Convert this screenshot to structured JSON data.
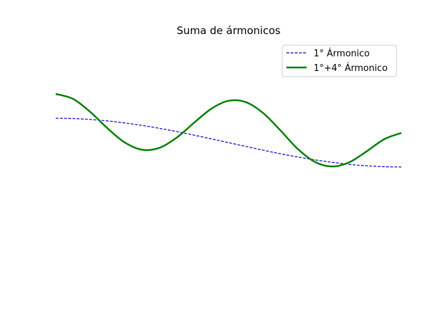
{
  "chart_data": {
    "type": "line",
    "title": "Suma de ármonicos",
    "xlabel": "",
    "ylabel": "",
    "xlim": [
      0,
      1
    ],
    "ylim": [
      -1.3,
      1.3
    ],
    "axes_visible": false,
    "grid": false,
    "legend_position": "top-right",
    "series": [
      {
        "name": "1° Ármonico",
        "color": "#0000cc",
        "style": "dashed",
        "x": [
          0,
          0.05,
          0.1,
          0.15,
          0.2,
          0.25,
          0.3,
          0.35,
          0.4,
          0.45,
          0.5,
          0.55,
          0.6,
          0.65,
          0.7,
          0.75,
          0.8,
          0.85,
          0.9,
          0.95,
          1.0
        ],
        "values": [
          0.5,
          0.497,
          0.488,
          0.473,
          0.452,
          0.427,
          0.397,
          0.364,
          0.327,
          0.289,
          0.25,
          0.211,
          0.173,
          0.136,
          0.103,
          0.073,
          0.048,
          0.027,
          0.012,
          0.003,
          0.0
        ]
      },
      {
        "name": "1°+4° Ármonico",
        "color": "#008000",
        "style": "solid",
        "x": [
          0,
          0.05,
          0.1,
          0.15,
          0.2,
          0.25,
          0.3,
          0.35,
          0.4,
          0.45,
          0.5,
          0.55,
          0.6,
          0.65,
          0.7,
          0.75,
          0.8,
          0.85,
          0.9,
          0.95,
          1.0
        ],
        "values": [
          0.75,
          0.699,
          0.565,
          0.396,
          0.251,
          0.177,
          0.197,
          0.302,
          0.454,
          0.598,
          0.68,
          0.666,
          0.554,
          0.376,
          0.186,
          0.052,
          0.005,
          0.05,
          0.162,
          0.285,
          0.35
        ]
      }
    ]
  }
}
